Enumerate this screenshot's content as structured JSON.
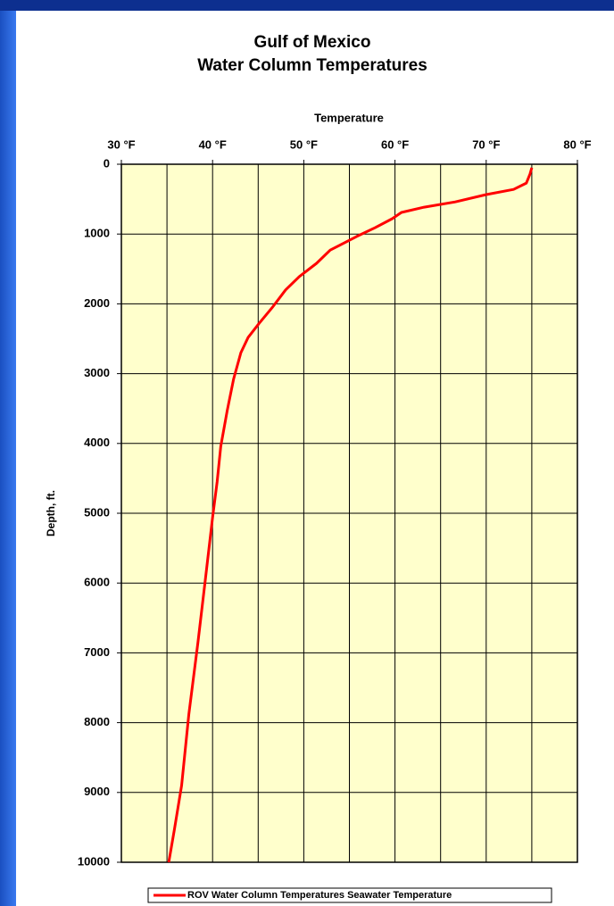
{
  "chart_data": {
    "type": "line",
    "title": [
      "Gulf of Mexico",
      "Water Column Temperatures"
    ],
    "x_label": "Temperature",
    "y_label": "Depth, ft.",
    "xlim": [
      30,
      80
    ],
    "xticks": [
      {
        "value": 30,
        "label": "30 °F"
      },
      {
        "value": 40,
        "label": "40 °F"
      },
      {
        "value": 50,
        "label": "50 °F"
      },
      {
        "value": 60,
        "label": "60 °F"
      },
      {
        "value": 70,
        "label": "70 °F"
      },
      {
        "value": 80,
        "label": "80 °F"
      }
    ],
    "x_minor_gridlines": [
      35,
      45,
      55,
      65,
      75
    ],
    "ylim": [
      0,
      10000
    ],
    "y_inverted": true,
    "yticks": [
      0,
      1000,
      2000,
      3000,
      4000,
      5000,
      6000,
      7000,
      8000,
      9000,
      10000
    ],
    "grid": true,
    "legend": "bottom",
    "series": [
      {
        "name": "ROV Water Column Temperatures Seawater Temperature",
        "color": "#ff0000",
        "x": [
          75.0,
          74.8,
          74.4,
          73.0,
          70.0,
          66.6,
          63.2,
          60.7,
          59.7,
          57.8,
          55.8,
          52.9,
          51.4,
          49.5,
          48.0,
          46.5,
          45.1,
          43.9,
          43.1,
          42.3,
          41.6,
          40.9,
          40.5,
          40.0,
          39.2,
          38.4,
          37.4,
          36.6,
          35.8,
          35.2
        ],
        "values": [
          50,
          140,
          270,
          360,
          435,
          540,
          615,
          690,
          780,
          910,
          1035,
          1230,
          1420,
          1610,
          1800,
          2060,
          2280,
          2480,
          2700,
          3080,
          3530,
          4040,
          4550,
          5060,
          5960,
          6850,
          7880,
          8900,
          9540,
          10000
        ]
      }
    ]
  }
}
